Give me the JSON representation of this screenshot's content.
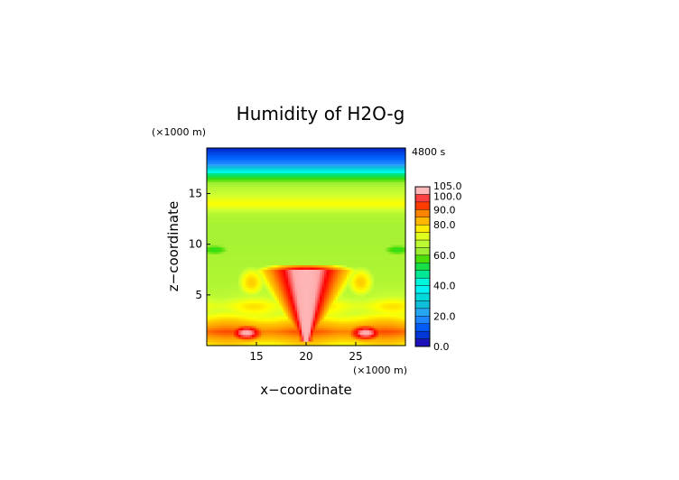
{
  "chart_data": {
    "type": "heatmap",
    "title": "Humidity of H2O-g",
    "time_label": "4800 s",
    "xlabel": "x−coordinate",
    "ylabel": "z−coordinate",
    "x_unit": "(×1000 m)",
    "y_unit": "(×1000 m)",
    "xlim": [
      10,
      30
    ],
    "ylim": [
      0,
      19.5
    ],
    "x_ticks": [
      15,
      20,
      25
    ],
    "y_ticks": [
      5,
      10,
      15
    ],
    "colorbar": {
      "min": 0,
      "max": 105,
      "tick_values": [
        0,
        20,
        40,
        60,
        80,
        90,
        100,
        105
      ],
      "tick_labels": [
        "0.0",
        "20.0",
        "40.0",
        "60.0",
        "80.0",
        "90.0",
        "100.0",
        "105.0"
      ]
    },
    "z_levels": [
      0,
      0.5,
      1,
      2,
      3,
      4,
      5,
      6,
      8,
      10,
      12,
      13,
      14,
      15,
      16,
      17,
      17.5,
      18,
      19,
      19.5
    ],
    "z_profile_humidity": [
      60,
      64,
      66,
      70,
      72,
      76,
      68,
      66,
      65,
      64,
      64,
      66,
      76,
      70,
      64,
      48,
      30,
      18,
      10,
      5
    ],
    "features": [
      {
        "type": "plume",
        "x_center": 20,
        "z_base": 0.8,
        "z_top": 7.5,
        "value_peak": 102
      },
      {
        "type": "lowlevel_band",
        "z_center": 1.4,
        "value": 90
      },
      {
        "type": "blob",
        "x_center": 14,
        "z_center": 1.3,
        "value": 101
      },
      {
        "type": "blob",
        "x_center": 26,
        "z_center": 1.3,
        "value": 101
      },
      {
        "type": "wet_ring",
        "x_center": 20,
        "z_center": 6.3,
        "value": 80
      },
      {
        "type": "dry_blob",
        "x_center": 10.8,
        "z_center": 9.5,
        "value": 55
      },
      {
        "type": "dry_blob",
        "x_center": 29.2,
        "z_center": 9.5,
        "value": 55
      }
    ]
  }
}
